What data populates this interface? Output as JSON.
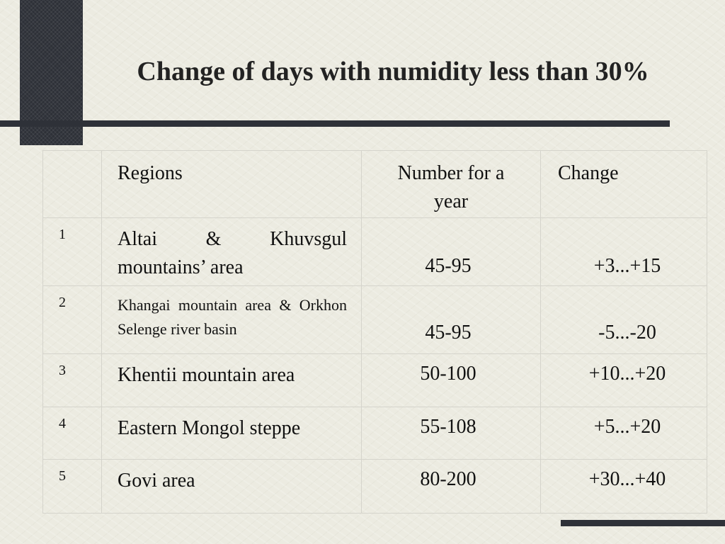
{
  "title": "Change of days with numidity less than 30%",
  "table": {
    "headers": {
      "index": "",
      "region": "Regions",
      "count": "Number for  a year",
      "change": "Change"
    },
    "rows": [
      {
        "index": "1",
        "region": "Altai & Khuvsgul mountains’ area",
        "count": "45-95",
        "change": "+3...+15"
      },
      {
        "index": "2",
        "region": "Khangai mountain area & Orkhon Selenge river basin",
        "count": "45-95",
        "change": "-5...-20"
      },
      {
        "index": "3",
        "region": "Khentii mountain area",
        "count": "50-100",
        "change": "+10...+20"
      },
      {
        "index": "4",
        "region": "Eastern Mongol steppe",
        "count": "55-108",
        "change": "+5...+20"
      },
      {
        "index": "5",
        "region": "Govi area",
        "count": "80-200",
        "change": "+30...+40"
      }
    ]
  }
}
